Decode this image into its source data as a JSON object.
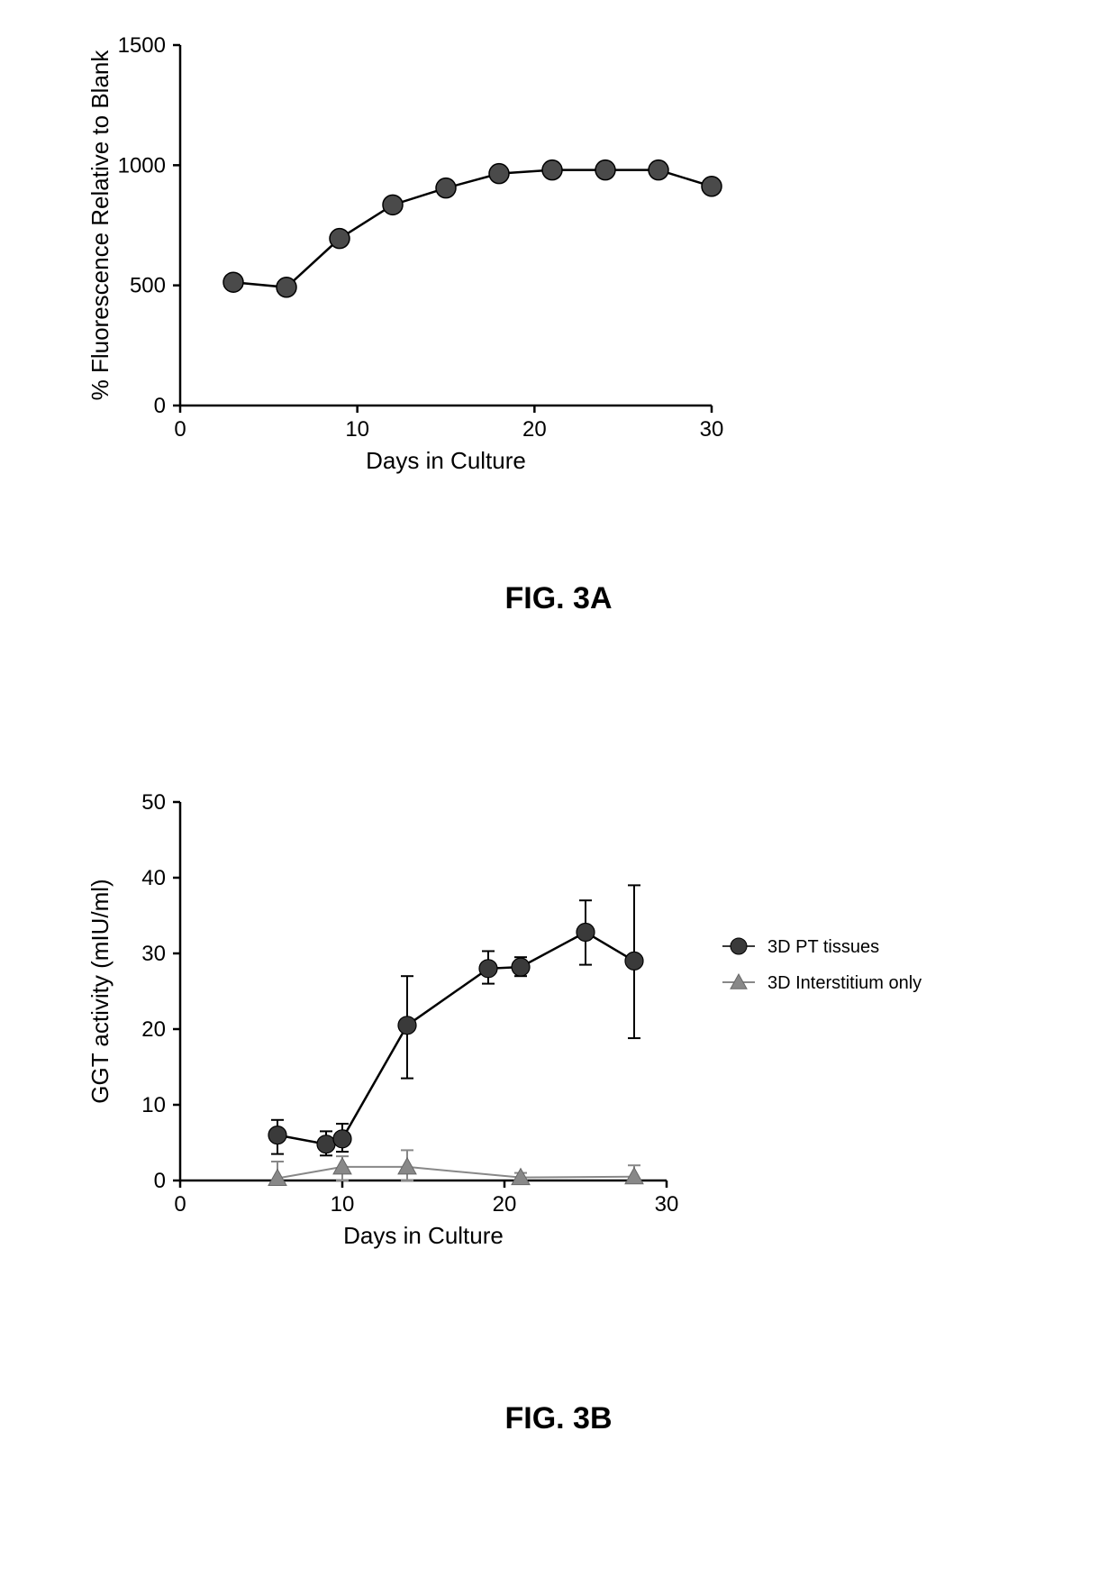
{
  "figure_a": {
    "label": "FIG. 3A",
    "chart": {
      "type": "line",
      "xlabel": "Days in  Culture",
      "ylabel": "% Fluorescence Relative to Blank",
      "xlim": [
        0,
        30
      ],
      "ylim": [
        0,
        1500
      ],
      "xticks": [
        0,
        10,
        20,
        30
      ],
      "yticks": [
        0,
        500,
        1000,
        1500
      ],
      "axis_color": "#000000",
      "axis_width": 2.5,
      "tick_length": 8,
      "background_color": "#ffffff",
      "label_fontsize": 26,
      "tick_fontsize": 24,
      "series": [
        {
          "data_x": [
            3,
            6,
            9,
            12,
            15,
            18,
            21,
            24,
            27,
            30
          ],
          "data_y": [
            513,
            492,
            695,
            835,
            905,
            965,
            980,
            980,
            980,
            912
          ],
          "line_color": "#000000",
          "line_width": 2.5,
          "marker": "circle",
          "marker_size": 11,
          "marker_fill": "#4a4a4a",
          "marker_stroke": "#000000",
          "marker_stroke_width": 1.5
        }
      ]
    }
  },
  "figure_b": {
    "label": "FIG. 3B",
    "chart": {
      "type": "line",
      "xlabel": "Days in  Culture",
      "ylabel": "GGT activity (mIU/ml)",
      "xlim": [
        0,
        30
      ],
      "ylim": [
        0,
        50
      ],
      "xticks": [
        0,
        10,
        20,
        30
      ],
      "yticks": [
        0,
        10,
        20,
        30,
        40,
        50
      ],
      "axis_color": "#000000",
      "axis_width": 2.5,
      "tick_length": 8,
      "background_color": "#ffffff",
      "label_fontsize": 26,
      "tick_fontsize": 24,
      "legend": {
        "items": [
          {
            "label": "3D PT tissues",
            "marker": "circle",
            "color": "#3a3a3a"
          },
          {
            "label": "3D Interstitium only",
            "marker": "triangle",
            "color": "#888888"
          }
        ]
      },
      "series": [
        {
          "name": "3D PT tissues",
          "data_x": [
            6,
            9,
            10,
            14,
            19,
            21,
            25,
            28
          ],
          "data_y": [
            6.0,
            4.8,
            5.5,
            20.5,
            28.0,
            28.2,
            32.8,
            29.0
          ],
          "err_lo": [
            3.5,
            3.3,
            3.8,
            13.5,
            26.0,
            27.0,
            28.5,
            18.8
          ],
          "err_hi": [
            8.0,
            6.5,
            7.5,
            27.0,
            30.3,
            29.5,
            37.0,
            39.0
          ],
          "line_color": "#000000",
          "line_width": 2.5,
          "marker": "circle",
          "marker_size": 10,
          "marker_fill": "#3a3a3a",
          "marker_stroke": "#000000",
          "marker_stroke_width": 1.2,
          "error_color": "#000000",
          "error_width": 2,
          "error_cap": 7
        },
        {
          "name": "3D Interstitium only",
          "data_x": [
            6,
            10,
            14,
            21,
            28
          ],
          "data_y": [
            0.3,
            1.8,
            1.8,
            0.4,
            0.5
          ],
          "err_lo": [
            0,
            0,
            0,
            0,
            0
          ],
          "err_hi": [
            2.5,
            3.2,
            4.0,
            1.0,
            2.0
          ],
          "line_color": "#888888",
          "line_width": 2,
          "marker": "triangle",
          "marker_size": 10,
          "marker_fill": "#888888",
          "marker_stroke": "#666666",
          "marker_stroke_width": 1,
          "error_color": "#888888",
          "error_width": 2,
          "error_cap": 7
        }
      ]
    }
  }
}
